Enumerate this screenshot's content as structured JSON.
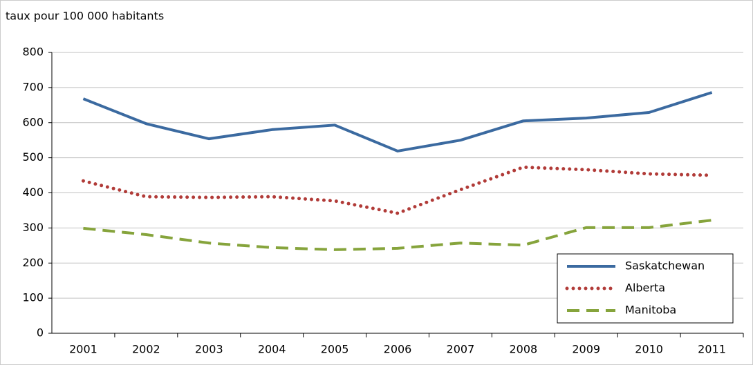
{
  "chart_data": {
    "type": "line",
    "y_axis_title": "taux pour 100 000 habitants",
    "categories": [
      "2001",
      "2002",
      "2003",
      "2004",
      "2005",
      "2006",
      "2007",
      "2008",
      "2009",
      "2010",
      "2011"
    ],
    "series": [
      {
        "name": "Saskatchewan",
        "color": "#3b6aa0",
        "style": "solid",
        "values": [
          668,
          597,
          554,
          580,
          593,
          519,
          550,
          605,
          613,
          629,
          686
        ]
      },
      {
        "name": "Alberta",
        "color": "#b13b38",
        "style": "dotted",
        "values": [
          434,
          389,
          387,
          389,
          377,
          342,
          409,
          473,
          466,
          454,
          450
        ]
      },
      {
        "name": "Manitoba",
        "color": "#86a43c",
        "style": "dashed",
        "values": [
          299,
          281,
          257,
          244,
          238,
          242,
          257,
          251,
          301,
          301,
          322
        ]
      }
    ],
    "ylim": [
      0,
      800
    ],
    "yticks": [
      0,
      100,
      200,
      300,
      400,
      500,
      600,
      700,
      800
    ],
    "grid": true,
    "legend": "lower right"
  }
}
